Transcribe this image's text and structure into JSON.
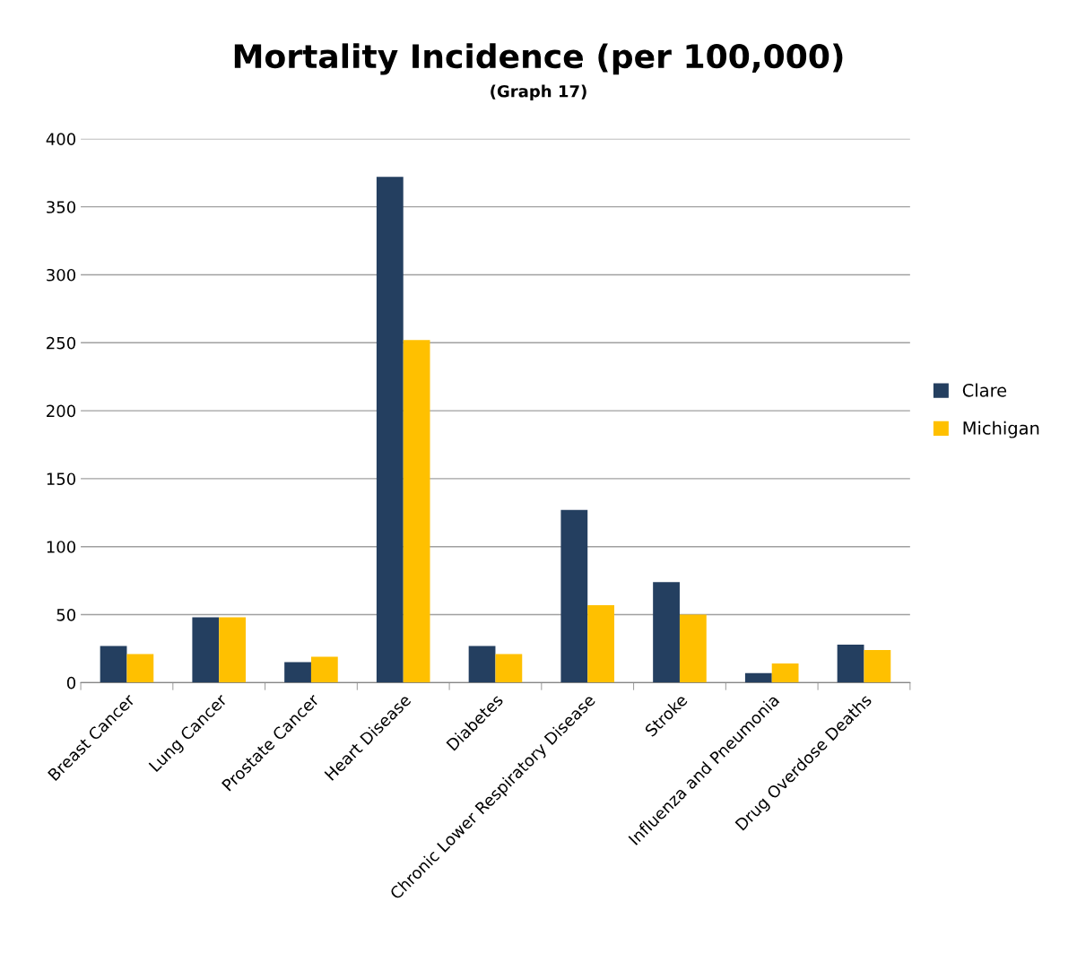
{
  "chart_data": {
    "type": "bar",
    "title": "Mortality Incidence (per 100,000)",
    "subtitle": "(Graph 17)",
    "categories": [
      "Breast Cancer",
      "Lung Cancer",
      "Prostate Cancer",
      "Heart Disease",
      "Diabetes",
      "Chronic Lower Respiratory Disease",
      "Stroke",
      "Influenza and Pneumonia",
      "Drug Overdose Deaths"
    ],
    "series": [
      {
        "name": "Clare",
        "color": "#243f60",
        "values": [
          27,
          48,
          15,
          372,
          27,
          127,
          74,
          7,
          28
        ]
      },
      {
        "name": "Michigan",
        "color": "#ffc000",
        "values": [
          21,
          48,
          19,
          252,
          21,
          57,
          50,
          14,
          24
        ]
      }
    ],
    "ylim": [
      0,
      400
    ],
    "yticks": [
      0,
      50,
      100,
      150,
      200,
      250,
      300,
      350,
      400
    ],
    "grid": "y",
    "legend": "right"
  }
}
